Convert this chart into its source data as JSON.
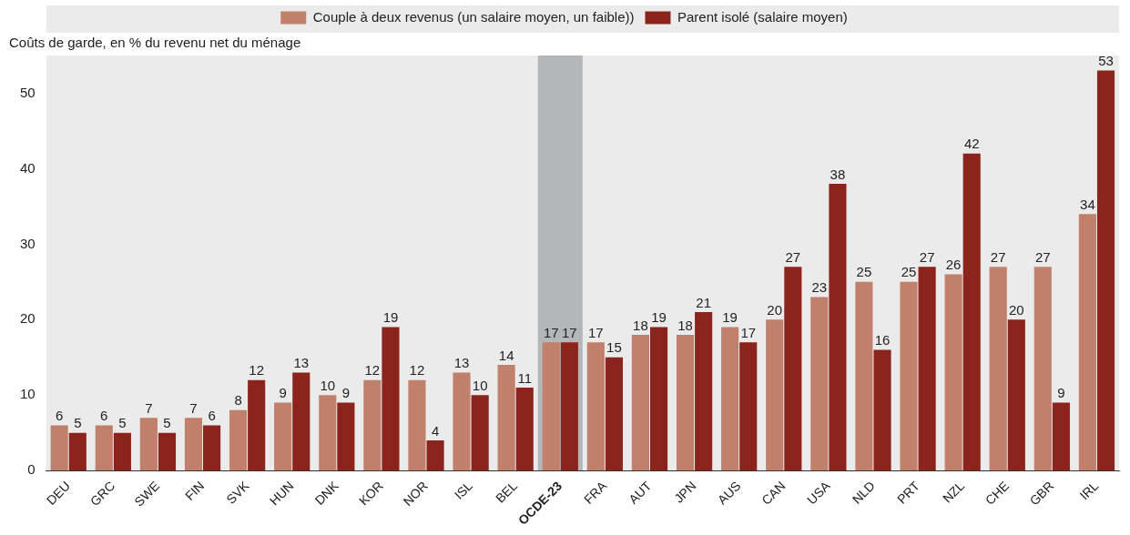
{
  "chart_data": {
    "type": "bar",
    "ylabel": "Coûts de garde, en % du revenu net du ménage",
    "categories": [
      "DEU",
      "GRC",
      "SWE",
      "FIN",
      "SVK",
      "HUN",
      "DNK",
      "KOR",
      "NOR",
      "ISL",
      "BEL",
      "OCDE-23",
      "FRA",
      "AUT",
      "JPN",
      "AUS",
      "CAN",
      "USA",
      "NLD",
      "PRT",
      "NZL",
      "CHE",
      "GBR",
      "IRL"
    ],
    "series": [
      {
        "name": "Couple à deux revenus (un salaire moyen, un faible))",
        "color": "#c0806b",
        "values": [
          6,
          6,
          7,
          7,
          8,
          9,
          10,
          12,
          12,
          13,
          14,
          17,
          17,
          18,
          18,
          19,
          20,
          23,
          25,
          25,
          26,
          27,
          27,
          34
        ]
      },
      {
        "name": "Parent isolé (salaire moyen)",
        "color": "#8b241c",
        "values": [
          5,
          5,
          5,
          6,
          12,
          13,
          9,
          19,
          4,
          10,
          11,
          17,
          15,
          19,
          21,
          17,
          27,
          38,
          16,
          27,
          42,
          20,
          9,
          53
        ]
      }
    ],
    "ylim": [
      0,
      55
    ],
    "yticks": [
      0,
      10,
      20,
      30,
      40,
      50
    ],
    "bands": [
      {
        "axis": "x",
        "from": "OCDE-23",
        "to": "OCDE-23",
        "color": "#b4b6b9"
      }
    ],
    "data_labels": true,
    "legend": "top",
    "grid": false
  }
}
